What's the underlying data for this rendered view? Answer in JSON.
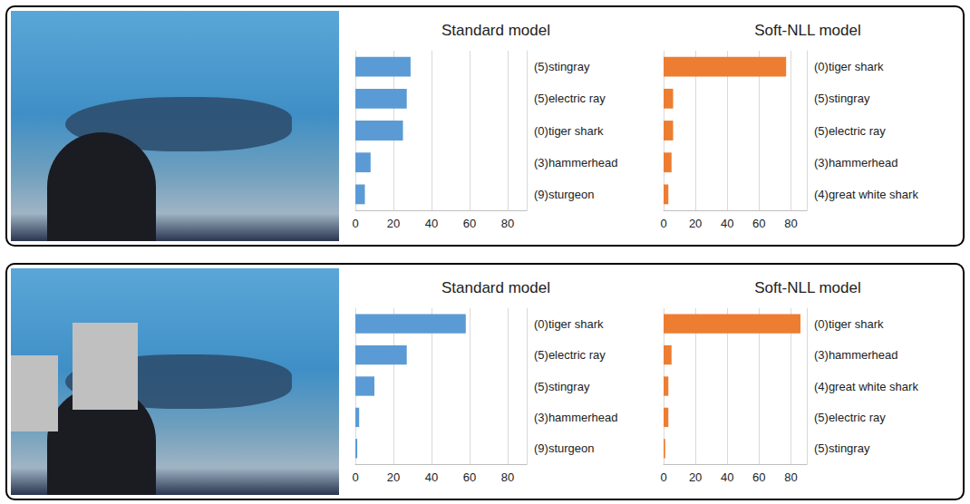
{
  "chart_data": [
    {
      "type": "bar",
      "title": "Standard model",
      "orientation": "horizontal",
      "categories": [
        "(5)stingray",
        "(5)electric ray",
        "(0)tiger shark",
        "(3)hammerhead",
        "(9)sturgeon"
      ],
      "values": [
        29,
        27,
        25,
        8,
        5
      ],
      "color": "#5b9bd5",
      "xlim": [
        0,
        90
      ],
      "xticks": [
        0,
        20,
        40,
        60,
        80
      ],
      "grid": true
    },
    {
      "type": "bar",
      "title": "Soft-NLL model",
      "orientation": "horizontal",
      "categories": [
        "(0)tiger shark",
        "(5)stingray",
        "(5)electric ray",
        "(3)hammerhead",
        "(4)great white shark"
      ],
      "values": [
        77,
        6,
        6,
        5,
        3
      ],
      "color": "#ed7d31",
      "xlim": [
        0,
        90
      ],
      "xticks": [
        0,
        20,
        40,
        60,
        80
      ],
      "grid": true
    },
    {
      "type": "bar",
      "title": "Standard model",
      "orientation": "horizontal",
      "categories": [
        "(0)tiger shark",
        "(5)electric ray",
        "(5)stingray",
        "(3)hammerhead",
        "(9)sturgeon"
      ],
      "values": [
        58,
        27,
        10,
        2,
        1
      ],
      "color": "#5b9bd5",
      "xlim": [
        0,
        90
      ],
      "xticks": [
        0,
        20,
        40,
        60,
        80
      ],
      "grid": true
    },
    {
      "type": "bar",
      "title": "Soft-NLL model",
      "orientation": "horizontal",
      "categories": [
        "(0)tiger shark",
        "(3)hammerhead",
        "(4)great white shark",
        "(5)electric ray",
        "(5)stingray"
      ],
      "values": [
        86,
        5,
        3,
        3,
        1
      ],
      "color": "#ed7d31",
      "xlim": [
        0,
        90
      ],
      "xticks": [
        0,
        20,
        40,
        60,
        80
      ],
      "grid": true
    }
  ]
}
